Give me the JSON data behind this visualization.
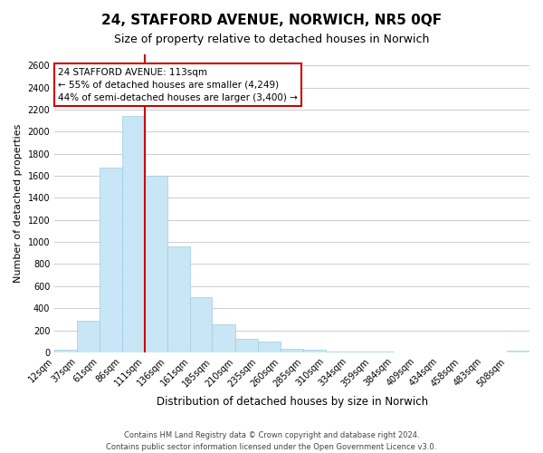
{
  "title": "24, STAFFORD AVENUE, NORWICH, NR5 0QF",
  "subtitle": "Size of property relative to detached houses in Norwich",
  "xlabel": "Distribution of detached houses by size in Norwich",
  "ylabel": "Number of detached properties",
  "bin_labels": [
    "12sqm",
    "37sqm",
    "61sqm",
    "86sqm",
    "111sqm",
    "136sqm",
    "161sqm",
    "185sqm",
    "210sqm",
    "235sqm",
    "260sqm",
    "285sqm",
    "310sqm",
    "334sqm",
    "359sqm",
    "384sqm",
    "409sqm",
    "434sqm",
    "458sqm",
    "483sqm",
    "508sqm"
  ],
  "bin_edges": [
    12,
    37,
    61,
    86,
    111,
    136,
    161,
    185,
    210,
    235,
    260,
    285,
    310,
    334,
    359,
    384,
    409,
    434,
    458,
    483,
    508,
    533
  ],
  "bar_heights": [
    20,
    290,
    1670,
    2140,
    1600,
    960,
    500,
    250,
    120,
    95,
    35,
    25,
    10,
    5,
    5,
    3,
    2,
    2,
    2,
    2,
    15
  ],
  "bar_color": "#c8e6f5",
  "bar_edgecolor": "#a0cce0",
  "property_line_x": 111,
  "property_line_color": "#cc0000",
  "annotation_title": "24 STAFFORD AVENUE: 113sqm",
  "annotation_line1": "← 55% of detached houses are smaller (4,249)",
  "annotation_line2": "44% of semi-detached houses are larger (3,400) →",
  "annotation_box_facecolor": "#ffffff",
  "annotation_box_edgecolor": "#cc0000",
  "ylim": [
    0,
    2700
  ],
  "yticks": [
    0,
    200,
    400,
    600,
    800,
    1000,
    1200,
    1400,
    1600,
    1800,
    2000,
    2200,
    2400,
    2600
  ],
  "grid_color": "#cccccc",
  "footer1": "Contains HM Land Registry data © Crown copyright and database right 2024.",
  "footer2": "Contains public sector information licensed under the Open Government Licence v3.0.",
  "background_color": "#ffffff",
  "title_fontsize": 11,
  "subtitle_fontsize": 9,
  "ylabel_fontsize": 8,
  "xlabel_fontsize": 8.5,
  "tick_fontsize": 7,
  "footer_fontsize": 6,
  "annotation_fontsize": 7.5
}
